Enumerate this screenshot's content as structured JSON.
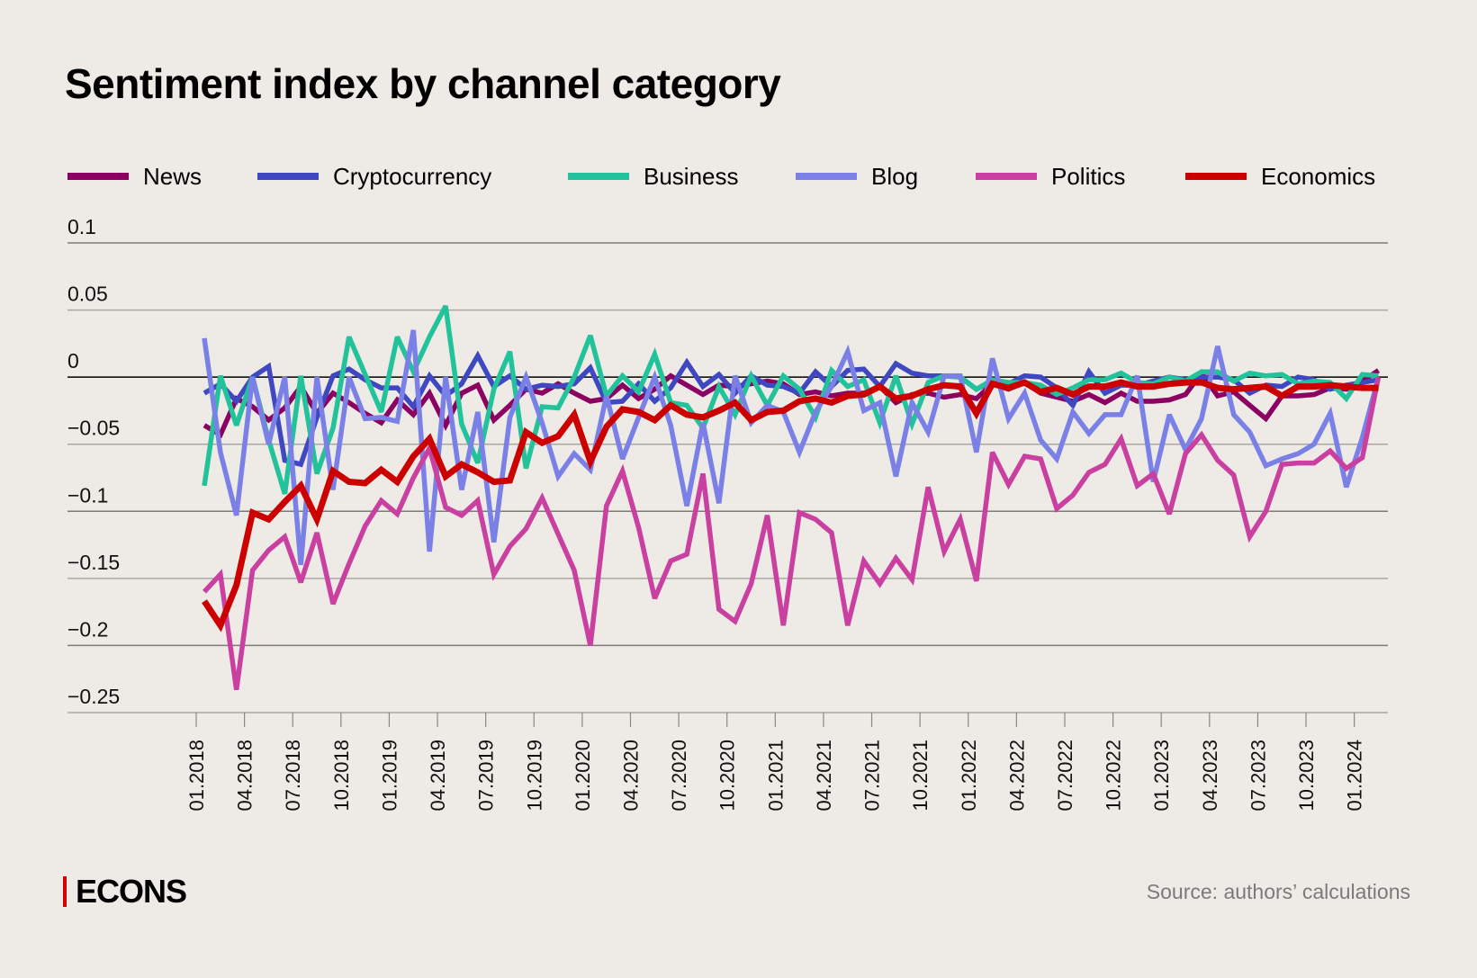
{
  "chart_data": {
    "type": "line",
    "title": "Sentiment index by channel category",
    "xlabel": "",
    "ylabel": "",
    "ylim": [
      -0.25,
      0.1
    ],
    "y_ticks": [
      0.1,
      0.05,
      0,
      -0.05,
      -0.1,
      -0.15,
      -0.2,
      -0.25
    ],
    "y_tick_labels": [
      "0.1",
      "0.05",
      "0",
      "−0.05",
      "−0.1",
      "−0.15",
      "−0.2",
      "−0.25"
    ],
    "grid": true,
    "legend_position": "top",
    "x_tick_labels": [
      "01.2018",
      "04.2018",
      "07.2018",
      "10.2018",
      "01.2019",
      "04.2019",
      "07.2019",
      "10.2019",
      "01.2020",
      "04.2020",
      "07.2020",
      "10.2020",
      "01.2021",
      "04.2021",
      "07.2021",
      "10.2021",
      "01.2022",
      "04.2022",
      "07.2022",
      "10.2022",
      "01.2023",
      "04.2023",
      "07.2023",
      "10.2023",
      "01.2024"
    ],
    "x": [
      "01.2018",
      "02.2018",
      "03.2018",
      "04.2018",
      "05.2018",
      "06.2018",
      "07.2018",
      "08.2018",
      "09.2018",
      "10.2018",
      "11.2018",
      "12.2018",
      "01.2019",
      "02.2019",
      "03.2019",
      "04.2019",
      "05.2019",
      "06.2019",
      "07.2019",
      "08.2019",
      "09.2019",
      "10.2019",
      "11.2019",
      "12.2019",
      "01.2020",
      "02.2020",
      "03.2020",
      "04.2020",
      "05.2020",
      "06.2020",
      "07.2020",
      "08.2020",
      "09.2020",
      "10.2020",
      "11.2020",
      "12.2020",
      "01.2021",
      "02.2021",
      "03.2021",
      "04.2021",
      "05.2021",
      "06.2021",
      "07.2021",
      "08.2021",
      "09.2021",
      "10.2021",
      "11.2021",
      "12.2021",
      "01.2022",
      "02.2022",
      "03.2022",
      "04.2022",
      "05.2022",
      "06.2022",
      "07.2022",
      "08.2022",
      "09.2022",
      "10.2022",
      "11.2022",
      "12.2022",
      "01.2023",
      "02.2023",
      "03.2023",
      "04.2023",
      "05.2023",
      "06.2023",
      "07.2023",
      "08.2023",
      "09.2023",
      "10.2023",
      "11.2023",
      "12.2023",
      "01.2024",
      "02.2024"
    ],
    "series": [
      {
        "name": "News",
        "color": "#8B0060",
        "values": [
          -0.036,
          -0.043,
          -0.016,
          -0.022,
          -0.032,
          -0.023,
          -0.007,
          -0.027,
          -0.012,
          -0.019,
          -0.027,
          -0.034,
          -0.017,
          -0.028,
          -0.012,
          -0.036,
          -0.012,
          -0.006,
          -0.032,
          -0.021,
          -0.009,
          -0.012,
          -0.005,
          -0.012,
          -0.018,
          -0.016,
          -0.006,
          -0.016,
          -0.009,
          0.001,
          -0.006,
          -0.013,
          -0.006,
          -0.007,
          -0.005,
          -0.003,
          -0.005,
          -0.013,
          -0.011,
          -0.014,
          -0.012,
          -0.012,
          -0.007,
          -0.019,
          -0.013,
          -0.012,
          -0.015,
          -0.013,
          -0.016,
          -0.005,
          -0.009,
          -0.004,
          -0.012,
          -0.015,
          -0.018,
          -0.013,
          -0.019,
          -0.012,
          -0.018,
          -0.018,
          -0.017,
          -0.013,
          0.003,
          -0.014,
          -0.011,
          -0.021,
          -0.031,
          -0.014,
          -0.014,
          -0.013,
          -0.008,
          -0.009,
          -0.003,
          0.005
        ]
      },
      {
        "name": "Cryptocurrency",
        "color": "#3F48C0",
        "values": [
          -0.012,
          -0.005,
          -0.018,
          0.0,
          0.008,
          -0.062,
          -0.065,
          -0.03,
          0.001,
          0.006,
          -0.002,
          -0.008,
          -0.008,
          -0.022,
          0.001,
          -0.014,
          -0.005,
          0.016,
          -0.007,
          0.001,
          -0.009,
          -0.006,
          -0.007,
          -0.005,
          0.007,
          -0.019,
          -0.018,
          -0.005,
          -0.018,
          -0.008,
          0.011,
          -0.007,
          0.002,
          -0.012,
          0.001,
          -0.006,
          -0.007,
          -0.012,
          0.004,
          -0.007,
          0.005,
          0.006,
          -0.007,
          0.01,
          0.003,
          0.001,
          0.001,
          0.0,
          -0.009,
          -0.003,
          -0.005,
          0.001,
          0.0,
          -0.008,
          -0.021,
          0.004,
          -0.012,
          -0.006,
          -0.006,
          -0.003,
          0.0,
          -0.002,
          0.0,
          0.0,
          -0.002,
          -0.012,
          -0.006,
          -0.007,
          0.0,
          -0.002,
          -0.009,
          -0.006,
          -0.004,
          -0.002
        ]
      },
      {
        "name": "Business",
        "color": "#22C39A",
        "values": [
          -0.081,
          0.001,
          -0.036,
          0.0,
          -0.047,
          -0.087,
          0.001,
          -0.072,
          -0.038,
          0.03,
          0.002,
          -0.026,
          0.03,
          0.004,
          0.03,
          0.053,
          -0.035,
          -0.064,
          -0.009,
          0.019,
          -0.068,
          -0.022,
          -0.023,
          0.0,
          0.031,
          -0.014,
          0.001,
          -0.011,
          0.017,
          -0.019,
          -0.021,
          -0.038,
          -0.007,
          -0.028,
          0.001,
          -0.021,
          0.001,
          -0.009,
          -0.03,
          0.005,
          -0.007,
          -0.002,
          -0.034,
          0.001,
          -0.035,
          -0.004,
          0.001,
          0.0,
          -0.009,
          -0.002,
          -0.004,
          -0.004,
          -0.006,
          -0.013,
          -0.008,
          -0.002,
          -0.002,
          0.003,
          -0.004,
          -0.005,
          0.0,
          -0.003,
          0.004,
          0.004,
          -0.003,
          0.003,
          0.001,
          0.002,
          -0.005,
          -0.003,
          -0.004,
          -0.016,
          0.002,
          0.001
        ]
      },
      {
        "name": "Blog",
        "color": "#7B80E6",
        "values": [
          0.029,
          -0.056,
          -0.103,
          0.0,
          -0.05,
          0.0,
          -0.14,
          0.0,
          -0.084,
          0.0,
          -0.031,
          -0.03,
          -0.033,
          0.035,
          -0.13,
          0.0,
          -0.084,
          -0.026,
          -0.123,
          -0.03,
          0.0,
          -0.034,
          -0.074,
          -0.057,
          -0.069,
          -0.014,
          -0.061,
          -0.03,
          0.0,
          -0.036,
          -0.096,
          -0.034,
          -0.094,
          0.001,
          -0.034,
          -0.021,
          -0.026,
          -0.056,
          -0.026,
          -0.007,
          0.019,
          -0.025,
          -0.019,
          -0.074,
          -0.019,
          -0.041,
          0.001,
          0.001,
          -0.056,
          0.014,
          -0.031,
          -0.012,
          -0.047,
          -0.061,
          -0.026,
          -0.042,
          -0.028,
          -0.028,
          0.001,
          -0.078,
          -0.028,
          -0.054,
          -0.031,
          0.023,
          -0.028,
          -0.041,
          -0.066,
          -0.061,
          -0.057,
          -0.05,
          -0.027,
          -0.082,
          -0.045,
          0.0
        ]
      },
      {
        "name": "Politics",
        "color": "#C940A0",
        "values": [
          -0.16,
          -0.147,
          -0.233,
          -0.144,
          -0.129,
          -0.119,
          -0.153,
          -0.116,
          -0.169,
          -0.139,
          -0.111,
          -0.092,
          -0.102,
          -0.075,
          -0.053,
          -0.097,
          -0.103,
          -0.092,
          -0.147,
          -0.126,
          -0.113,
          -0.09,
          -0.117,
          -0.144,
          -0.2,
          -0.096,
          -0.07,
          -0.112,
          -0.165,
          -0.137,
          -0.132,
          -0.072,
          -0.173,
          -0.182,
          -0.154,
          -0.103,
          -0.185,
          -0.101,
          -0.106,
          -0.116,
          -0.185,
          -0.137,
          -0.154,
          -0.135,
          -0.151,
          -0.082,
          -0.13,
          -0.106,
          -0.152,
          -0.056,
          -0.08,
          -0.059,
          -0.061,
          -0.098,
          -0.088,
          -0.071,
          -0.065,
          -0.046,
          -0.081,
          -0.072,
          -0.102,
          -0.057,
          -0.043,
          -0.062,
          -0.073,
          -0.119,
          -0.1,
          -0.065,
          -0.064,
          -0.064,
          -0.055,
          -0.068,
          -0.06,
          0.0
        ]
      },
      {
        "name": "Economics",
        "color": "#CC0000",
        "values": [
          -0.167,
          -0.185,
          -0.155,
          -0.101,
          -0.106,
          -0.093,
          -0.081,
          -0.106,
          -0.07,
          -0.078,
          -0.079,
          -0.069,
          -0.078,
          -0.059,
          -0.046,
          -0.074,
          -0.065,
          -0.071,
          -0.078,
          -0.077,
          -0.041,
          -0.049,
          -0.044,
          -0.028,
          -0.063,
          -0.037,
          -0.024,
          -0.026,
          -0.032,
          -0.021,
          -0.028,
          -0.03,
          -0.025,
          -0.019,
          -0.032,
          -0.026,
          -0.025,
          -0.018,
          -0.016,
          -0.019,
          -0.014,
          -0.013,
          -0.007,
          -0.016,
          -0.014,
          -0.009,
          -0.006,
          -0.007,
          -0.027,
          -0.005,
          -0.008,
          -0.004,
          -0.011,
          -0.008,
          -0.013,
          -0.007,
          -0.007,
          -0.004,
          -0.007,
          -0.007,
          -0.005,
          -0.004,
          -0.004,
          -0.008,
          -0.009,
          -0.008,
          -0.007,
          -0.014,
          -0.007,
          -0.007,
          -0.006,
          -0.007,
          -0.008,
          -0.008
        ]
      }
    ]
  },
  "footer": {
    "logo": "ECONS",
    "source": "Source: authors’ calculations"
  }
}
